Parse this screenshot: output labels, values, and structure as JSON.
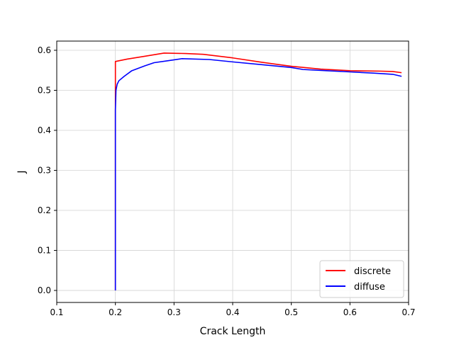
{
  "chart_data": {
    "type": "line",
    "title": "",
    "xlabel": "Crack Length",
    "ylabel": "J",
    "xlim": [
      0.1,
      0.7
    ],
    "ylim": [
      -0.03,
      0.623
    ],
    "x_ticks": [
      "0.1",
      "0.2",
      "0.3",
      "0.4",
      "0.5",
      "0.6",
      "0.7"
    ],
    "y_ticks": [
      "0.0",
      "0.1",
      "0.2",
      "0.3",
      "0.4",
      "0.5",
      "0.6"
    ],
    "grid": true,
    "legend_position": "lower-right",
    "series": [
      {
        "name": "discrete",
        "color": "#ff0000",
        "x": [
          0.2,
          0.2,
          0.2,
          0.22,
          0.25,
          0.283,
          0.32,
          0.35,
          0.4,
          0.45,
          0.5,
          0.55,
          0.6,
          0.65,
          0.673,
          0.688
        ],
        "y": [
          0.0,
          0.5,
          0.572,
          0.578,
          0.585,
          0.593,
          0.592,
          0.59,
          0.581,
          0.57,
          0.56,
          0.553,
          0.549,
          0.548,
          0.547,
          0.544
        ]
      },
      {
        "name": "diffuse",
        "color": "#0000ff",
        "x": [
          0.2,
          0.2,
          0.201,
          0.203,
          0.206,
          0.215,
          0.228,
          0.25,
          0.266,
          0.29,
          0.313,
          0.36,
          0.4,
          0.45,
          0.5,
          0.52,
          0.56,
          0.6,
          0.64,
          0.673,
          0.688
        ],
        "y": [
          0.0,
          0.45,
          0.5,
          0.515,
          0.524,
          0.535,
          0.549,
          0.561,
          0.569,
          0.574,
          0.579,
          0.577,
          0.571,
          0.564,
          0.557,
          0.552,
          0.549,
          0.546,
          0.543,
          0.54,
          0.535
        ]
      }
    ]
  }
}
